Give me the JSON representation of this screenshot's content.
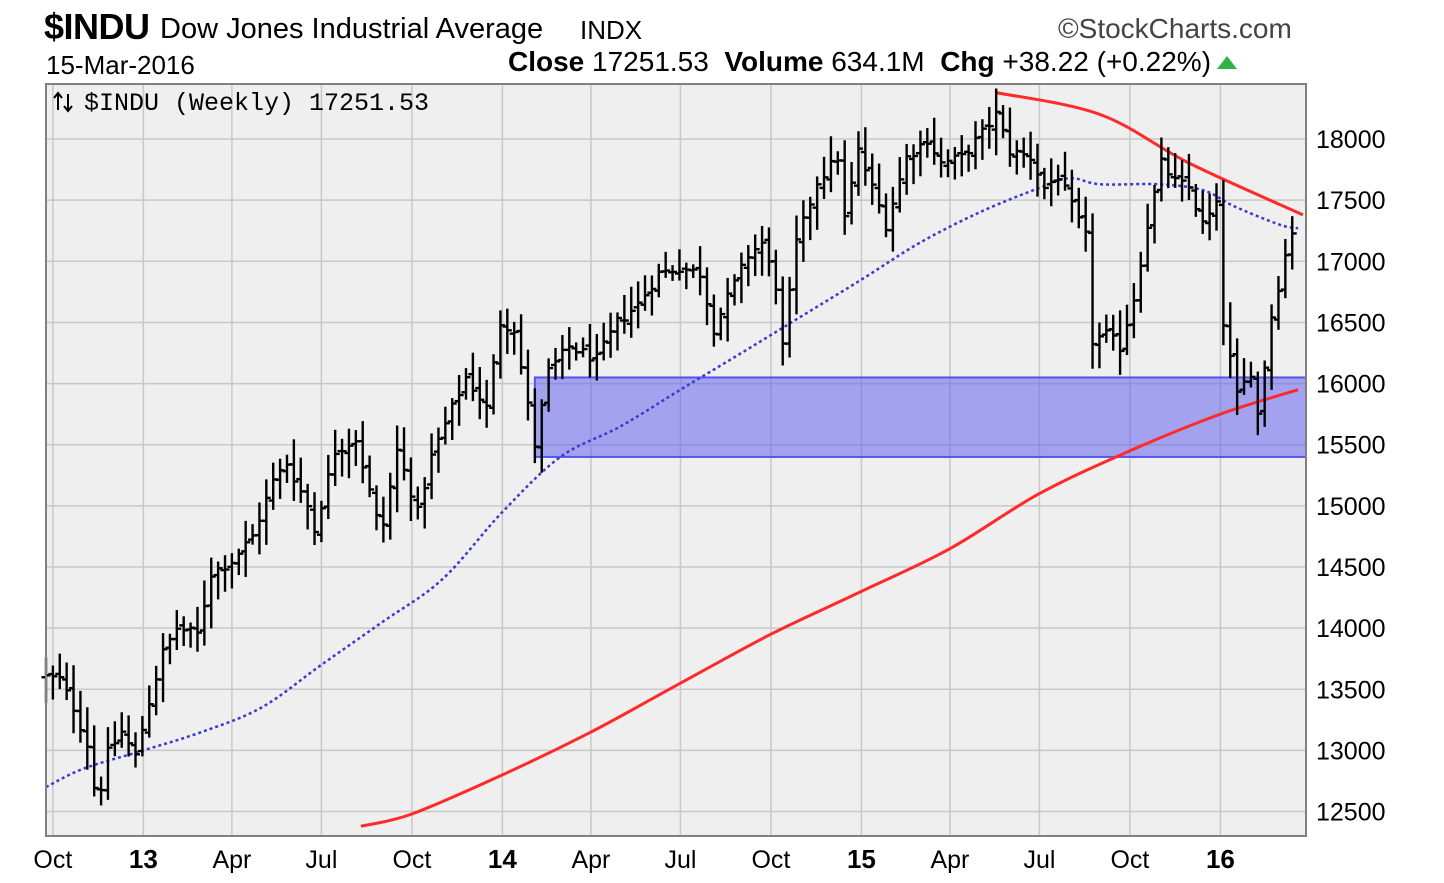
{
  "header": {
    "symbol": "$INDU",
    "name": "Dow Jones Industrial Average",
    "exchange": "INDX",
    "brand": "StockCharts.com",
    "brand_icon": "copyright-icon",
    "date": "15-Mar-2016",
    "close_label": "Close",
    "close_value": "17251.53",
    "volume_label": "Volume",
    "volume_value": "634.1M",
    "chg_label": "Chg",
    "chg_value": "+38.22 (+0.22%)",
    "chg_color": "#2db34a"
  },
  "chart_data": {
    "type": "bar",
    "subtype": "ohlc-weekly",
    "legend": "$INDU (Weekly) 17251.53",
    "legend_icon": "up-down-arrows-icon",
    "ylim": [
      12300,
      18450
    ],
    "yticks": [
      12500,
      13000,
      13500,
      14000,
      14500,
      15000,
      15500,
      16000,
      16500,
      17000,
      17500,
      18000
    ],
    "x_domain": [
      "2012-09-24",
      "2016-03-28"
    ],
    "xticks": [
      {
        "label": "Oct",
        "date": "2012-10-01",
        "year": false
      },
      {
        "label": "13",
        "date": "2013-01-01",
        "year": true
      },
      {
        "label": "Apr",
        "date": "2013-04-01",
        "year": false
      },
      {
        "label": "Jul",
        "date": "2013-07-01",
        "year": false
      },
      {
        "label": "Oct",
        "date": "2013-10-01",
        "year": false
      },
      {
        "label": "14",
        "date": "2014-01-01",
        "year": true
      },
      {
        "label": "Apr",
        "date": "2014-04-01",
        "year": false
      },
      {
        "label": "Jul",
        "date": "2014-07-01",
        "year": false
      },
      {
        "label": "Oct",
        "date": "2014-10-01",
        "year": false
      },
      {
        "label": "15",
        "date": "2015-01-01",
        "year": true
      },
      {
        "label": "Apr",
        "date": "2015-04-01",
        "year": false
      },
      {
        "label": "Jul",
        "date": "2015-07-01",
        "year": false
      },
      {
        "label": "Oct",
        "date": "2015-10-01",
        "year": false
      },
      {
        "label": "16",
        "date": "2016-01-01",
        "year": true
      }
    ],
    "grid": true,
    "price_path": [
      [
        "2012-09-24",
        13600
      ],
      [
        "2012-10-08",
        13580
      ],
      [
        "2012-10-22",
        13350
      ],
      [
        "2012-11-05",
        13050
      ],
      [
        "2012-11-15",
        12550
      ],
      [
        "2012-11-26",
        12980
      ],
      [
        "2012-12-10",
        13150
      ],
      [
        "2012-12-24",
        12950
      ],
      [
        "2013-01-07",
        13400
      ],
      [
        "2013-01-21",
        13800
      ],
      [
        "2013-02-04",
        14000
      ],
      [
        "2013-02-25",
        13950
      ],
      [
        "2013-03-11",
        14450
      ],
      [
        "2013-04-01",
        14550
      ],
      [
        "2013-04-22",
        14750
      ],
      [
        "2013-05-13",
        15200
      ],
      [
        "2013-05-27",
        15350
      ],
      [
        "2013-06-17",
        15000
      ],
      [
        "2013-06-24",
        14800
      ],
      [
        "2013-07-15",
        15450
      ],
      [
        "2013-08-05",
        15550
      ],
      [
        "2013-08-26",
        14900
      ],
      [
        "2013-09-02",
        14850
      ],
      [
        "2013-09-16",
        15450
      ],
      [
        "2013-10-07",
        14950
      ],
      [
        "2013-10-21",
        15400
      ],
      [
        "2013-11-11",
        15800
      ],
      [
        "2013-11-25",
        16050
      ],
      [
        "2013-12-16",
        15800
      ],
      [
        "2013-12-30",
        16500
      ],
      [
        "2014-01-13",
        16450
      ],
      [
        "2014-02-03",
        15500
      ],
      [
        "2014-02-17",
        16100
      ],
      [
        "2014-03-10",
        16300
      ],
      [
        "2014-04-07",
        16200
      ],
      [
        "2014-04-28",
        16500
      ],
      [
        "2014-05-19",
        16650
      ],
      [
        "2014-06-09",
        16900
      ],
      [
        "2014-06-30",
        16950
      ],
      [
        "2014-07-21",
        16900
      ],
      [
        "2014-08-04",
        16450
      ],
      [
        "2014-08-18",
        16700
      ],
      [
        "2014-09-08",
        17050
      ],
      [
        "2014-09-22",
        17150
      ],
      [
        "2014-10-06",
        16800
      ],
      [
        "2014-10-13",
        16300
      ],
      [
        "2014-10-27",
        17150
      ],
      [
        "2014-11-17",
        17650
      ],
      [
        "2014-12-08",
        17850
      ],
      [
        "2014-12-15",
        17350
      ],
      [
        "2014-12-29",
        17900
      ],
      [
        "2015-01-12",
        17600
      ],
      [
        "2015-01-26",
        17300
      ],
      [
        "2015-02-16",
        17850
      ],
      [
        "2015-03-09",
        18000
      ],
      [
        "2015-03-23",
        17800
      ],
      [
        "2015-04-13",
        17850
      ],
      [
        "2015-05-04",
        18050
      ],
      [
        "2015-05-18",
        18200
      ],
      [
        "2015-06-01",
        17900
      ],
      [
        "2015-06-22",
        17850
      ],
      [
        "2015-07-06",
        17600
      ],
      [
        "2015-07-20",
        17700
      ],
      [
        "2015-08-03",
        17450
      ],
      [
        "2015-08-17",
        17200
      ],
      [
        "2015-08-24",
        16350
      ],
      [
        "2015-09-07",
        16400
      ],
      [
        "2015-09-21",
        16300
      ],
      [
        "2015-10-05",
        16700
      ],
      [
        "2015-10-19",
        17300
      ],
      [
        "2015-11-02",
        17800
      ],
      [
        "2015-11-16",
        17650
      ],
      [
        "2015-11-30",
        17600
      ],
      [
        "2015-12-14",
        17300
      ],
      [
        "2015-12-28",
        17450
      ],
      [
        "2016-01-04",
        16500
      ],
      [
        "2016-01-18",
        15900
      ],
      [
        "2016-02-01",
        16100
      ],
      [
        "2016-02-08",
        15750
      ],
      [
        "2016-02-22",
        16550
      ],
      [
        "2016-03-07",
        17050
      ],
      [
        "2016-03-14",
        17250
      ]
    ],
    "overlays": [
      {
        "kind": "moving-average",
        "style": "dotted",
        "color": "#3a3acc",
        "points": [
          [
            "2012-09-24",
            12700
          ],
          [
            "2012-11-01",
            12850
          ],
          [
            "2013-01-01",
            13000
          ],
          [
            "2013-03-01",
            13150
          ],
          [
            "2013-05-01",
            13350
          ],
          [
            "2013-07-01",
            13700
          ],
          [
            "2013-09-01",
            14050
          ],
          [
            "2013-11-01",
            14400
          ],
          [
            "2014-01-01",
            14950
          ],
          [
            "2014-03-01",
            15400
          ],
          [
            "2014-05-01",
            15650
          ],
          [
            "2014-07-01",
            15950
          ],
          [
            "2014-09-01",
            16250
          ],
          [
            "2014-11-01",
            16550
          ],
          [
            "2015-01-01",
            16850
          ],
          [
            "2015-03-01",
            17150
          ],
          [
            "2015-05-01",
            17400
          ],
          [
            "2015-07-01",
            17600
          ],
          [
            "2015-08-01",
            17680
          ],
          [
            "2015-09-01",
            17630
          ],
          [
            "2015-11-01",
            17630
          ],
          [
            "2015-12-15",
            17580
          ],
          [
            "2016-01-15",
            17450
          ],
          [
            "2016-03-01",
            17300
          ],
          [
            "2016-03-20",
            17270
          ]
        ]
      },
      {
        "kind": "moving-average",
        "style": "solid",
        "color": "#ff2a2a",
        "points": [
          [
            "2013-08-10",
            12380
          ],
          [
            "2013-10-01",
            12480
          ],
          [
            "2014-01-01",
            12800
          ],
          [
            "2014-04-01",
            13150
          ],
          [
            "2014-07-01",
            13550
          ],
          [
            "2014-10-01",
            13950
          ],
          [
            "2015-01-01",
            14300
          ],
          [
            "2015-04-01",
            14650
          ],
          [
            "2015-07-01",
            15100
          ],
          [
            "2015-10-01",
            15450
          ],
          [
            "2016-01-01",
            15750
          ],
          [
            "2016-03-20",
            15950
          ]
        ]
      },
      {
        "kind": "trendline",
        "style": "solid",
        "color": "#ff2a2a",
        "points": [
          [
            "2015-05-18",
            18380
          ],
          [
            "2015-09-01",
            18200
          ],
          [
            "2015-12-01",
            17800
          ],
          [
            "2016-03-25",
            17380
          ]
        ]
      }
    ],
    "zones": [
      {
        "x_from": "2014-02-03",
        "x_to": "2016-03-28",
        "y_from": 15400,
        "y_to": 16050,
        "color": "#5555ee"
      }
    ]
  }
}
